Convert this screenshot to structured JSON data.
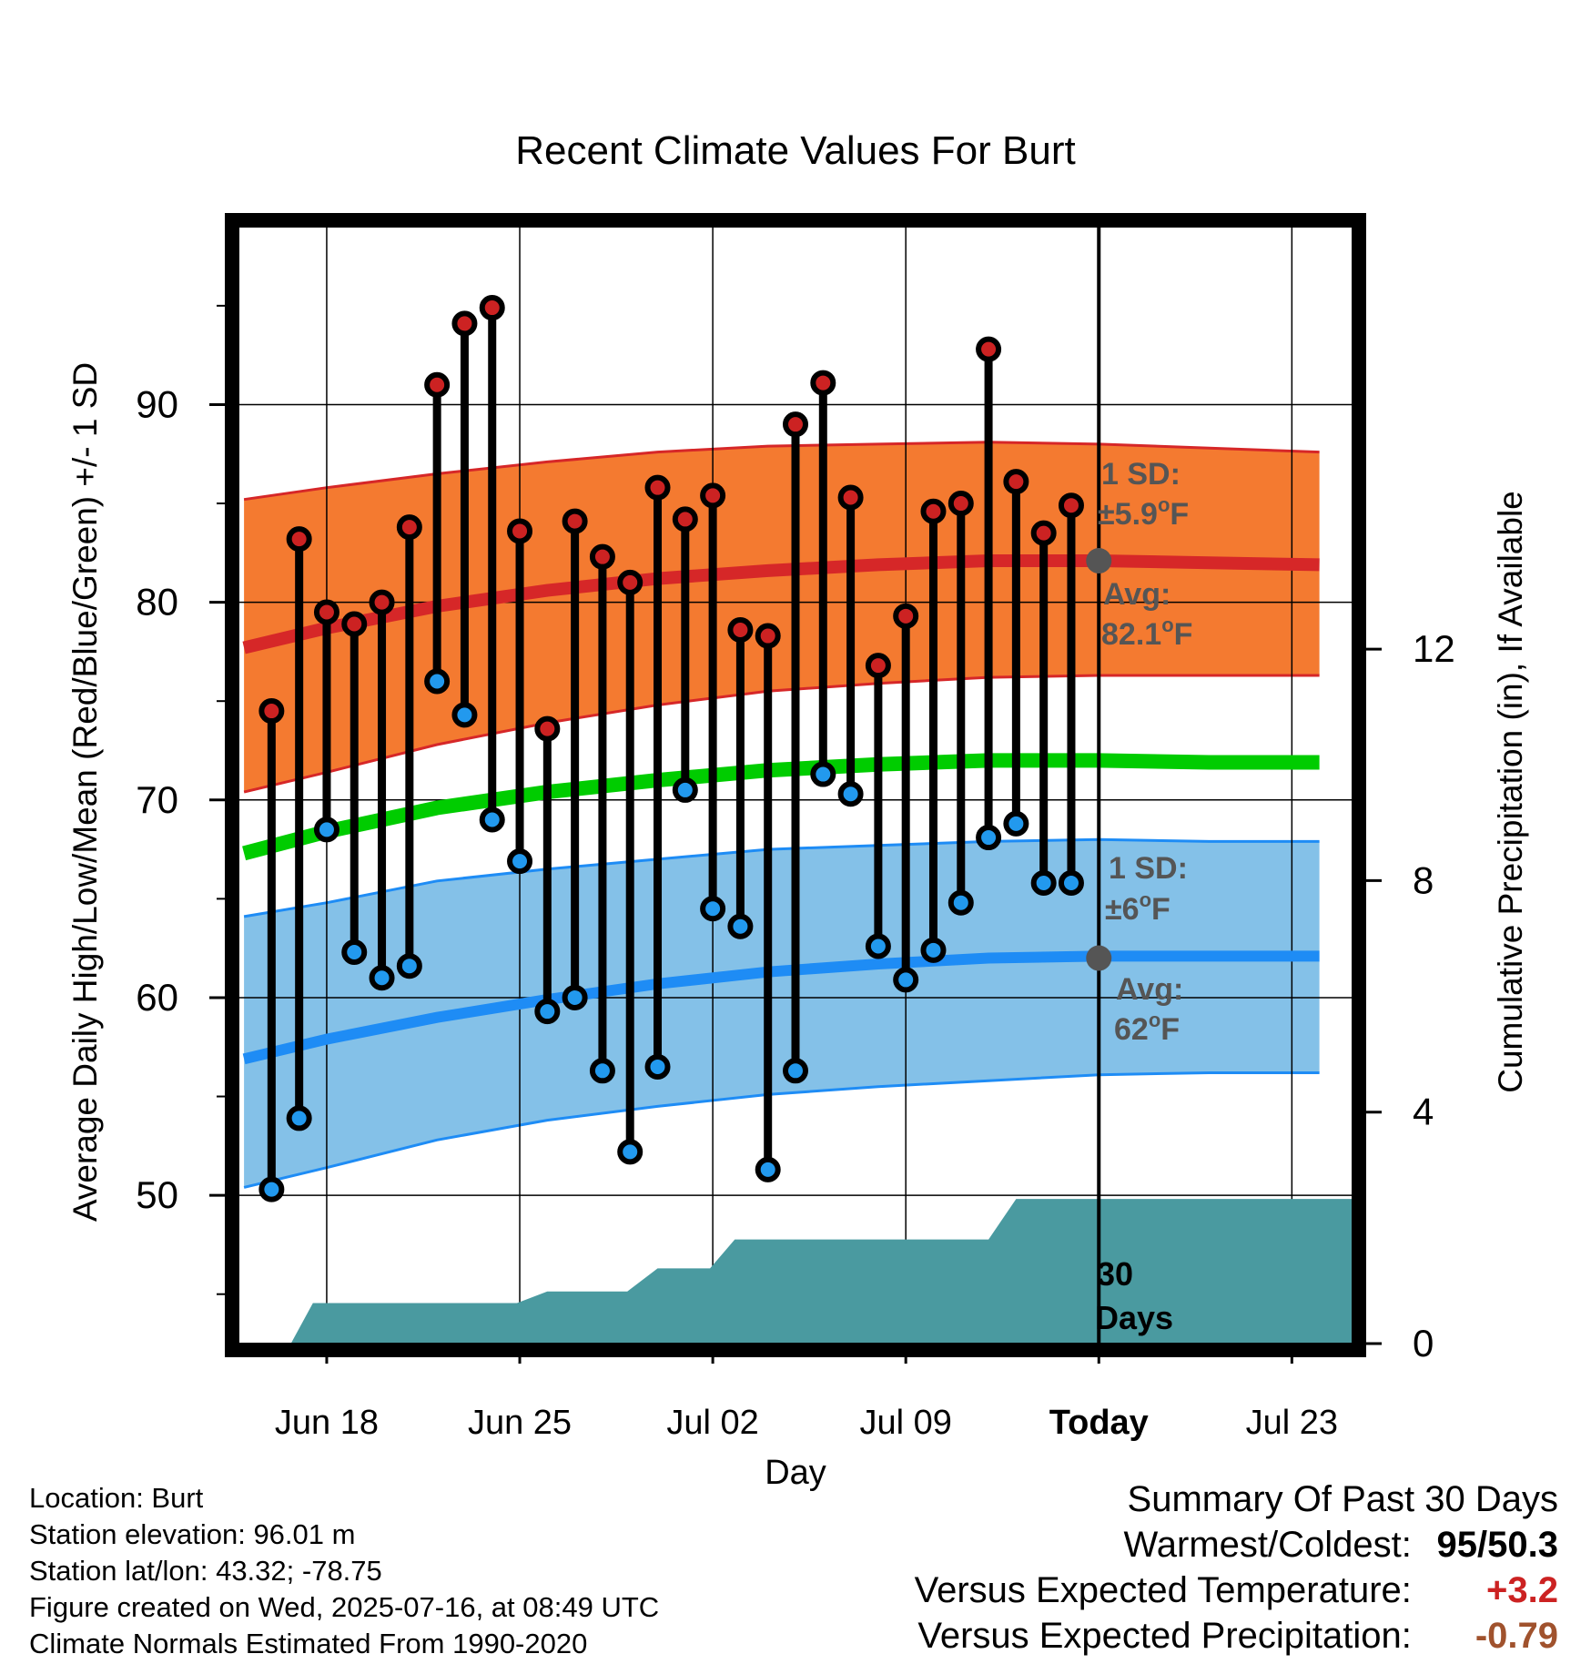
{
  "chart_data": {
    "type": "line",
    "title": "Recent Climate Values For Burt",
    "xlabel": "Day",
    "ylabel": "Average Daily High/Low/Mean (Red/Blue/Green) +/- 1 SD",
    "y2label": "Cumulative Precipitation (in), If Available",
    "ylim": [
      42.5,
      99
    ],
    "y2lim": [
      0,
      19.3
    ],
    "xlim": [
      -3.2,
      37.2
    ],
    "x_ticks": [
      {
        "day": 0,
        "label": "Jun 18"
      },
      {
        "day": 7,
        "label": "Jun 25"
      },
      {
        "day": 14,
        "label": "Jul 02"
      },
      {
        "day": 21,
        "label": "Jul 09"
      },
      {
        "day": 28,
        "label": "Today"
      },
      {
        "day": 35,
        "label": "Jul 23"
      }
    ],
    "y_ticks": [
      50,
      60,
      70,
      80,
      90
    ],
    "y2_ticks": [
      0,
      4,
      8,
      12
    ],
    "grid": true,
    "days": [
      -2,
      -1,
      0,
      1,
      2,
      3,
      4,
      5,
      6,
      7,
      8,
      9,
      10,
      11,
      12,
      13,
      14,
      15,
      16,
      17,
      18,
      19,
      20,
      21,
      22,
      23,
      24,
      25,
      26,
      27
    ],
    "high": [
      74.5,
      83.2,
      79.5,
      78.9,
      80.0,
      83.8,
      91.0,
      94.1,
      94.9,
      83.6,
      73.6,
      84.1,
      82.3,
      81.0,
      85.8,
      84.2,
      85.4,
      78.6,
      78.3,
      89.0,
      91.1,
      85.3,
      76.8,
      79.3,
      84.6,
      85.0,
      92.8,
      86.1,
      83.5,
      84.9
    ],
    "low": [
      50.3,
      53.9,
      68.5,
      62.3,
      61.0,
      61.6,
      76.0,
      74.3,
      69.0,
      66.9,
      59.3,
      60.0,
      56.3,
      52.2,
      56.5,
      70.5,
      64.5,
      63.6,
      51.3,
      56.3,
      71.3,
      70.3,
      62.6,
      60.9,
      62.4,
      64.8,
      68.1,
      68.8,
      65.8,
      65.8
    ],
    "normals": {
      "days": [
        -3,
        0,
        4,
        8,
        12,
        16,
        20,
        24,
        28,
        32,
        36
      ],
      "avg_high": [
        77.7,
        78.7,
        79.8,
        80.6,
        81.2,
        81.6,
        81.9,
        82.1,
        82.1,
        82.0,
        81.9
      ],
      "high_upper": [
        85.2,
        85.8,
        86.5,
        87.1,
        87.6,
        87.9,
        88.0,
        88.1,
        88.0,
        87.8,
        87.6
      ],
      "high_lower": [
        70.4,
        71.4,
        72.8,
        73.9,
        74.8,
        75.5,
        75.9,
        76.2,
        76.3,
        76.3,
        76.3
      ],
      "avg_mean": [
        67.3,
        68.4,
        69.6,
        70.4,
        71.0,
        71.5,
        71.8,
        72.0,
        72.0,
        71.9,
        71.9
      ],
      "avg_low": [
        56.9,
        57.9,
        59.0,
        59.9,
        60.7,
        61.3,
        61.7,
        62.0,
        62.1,
        62.1,
        62.1
      ],
      "low_upper": [
        64.1,
        64.8,
        65.9,
        66.5,
        67.0,
        67.5,
        67.7,
        67.9,
        68.0,
        67.9,
        67.9
      ],
      "low_lower": [
        50.4,
        51.4,
        52.8,
        53.8,
        54.5,
        55.1,
        55.5,
        55.8,
        56.1,
        56.2,
        56.2
      ]
    },
    "precip_cumulative": {
      "days": [
        -1.3,
        -0.5,
        6.9,
        8.0,
        10.9,
        12.0,
        13.9,
        14.8,
        15.0,
        16.0,
        24.0,
        25.0,
        37.2
      ],
      "values": [
        0,
        0.7,
        0.7,
        0.9,
        0.9,
        1.3,
        1.3,
        1.8,
        1.8,
        1.8,
        1.8,
        2.5,
        2.5
      ]
    },
    "today_day": 28,
    "annotations": {
      "high_sd": "1 SD:",
      "high_sd_value": "±5.9",
      "high_avg": "Avg:",
      "high_avg_value": "82.1",
      "low_sd": "1 SD:",
      "low_sd_value": "±6",
      "low_avg": "Avg:",
      "low_avg_value": "62",
      "unit_symbol": "o",
      "unit_letter": "F",
      "days_line1": "30",
      "days_line2": "Days"
    },
    "colors": {
      "high_band": "#f47a30",
      "high_line": "#d62728",
      "low_band": "#84c1e8",
      "low_line": "#1e8cf5",
      "mean_line": "#00cc00",
      "precip": "#4a9aa0",
      "high_dot": "#cc2222",
      "low_dot": "#2299ee",
      "annotation": "#555555"
    }
  },
  "info": {
    "location": "Location: Burt",
    "elevation": "Station elevation: 96.01 m",
    "latlon": "Station lat/lon: 43.32; -78.75",
    "created": "Figure created on Wed, 2025-07-16, at 08:49 UTC",
    "normals": "Climate Normals Estimated From 1990-2020"
  },
  "summary": {
    "title": "Summary Of Past 30 Days",
    "warmest_coldest_label": "Warmest/Coldest:",
    "warmest": "95",
    "slash": "/",
    "coldest": "50.3",
    "temp_label": "Versus Expected Temperature:",
    "temp_value": "+3.2",
    "precip_label": "Versus Expected Precipitation:",
    "precip_value": "-0.79",
    "temp_color": "#cc2222",
    "precip_color": "#a0522d"
  }
}
